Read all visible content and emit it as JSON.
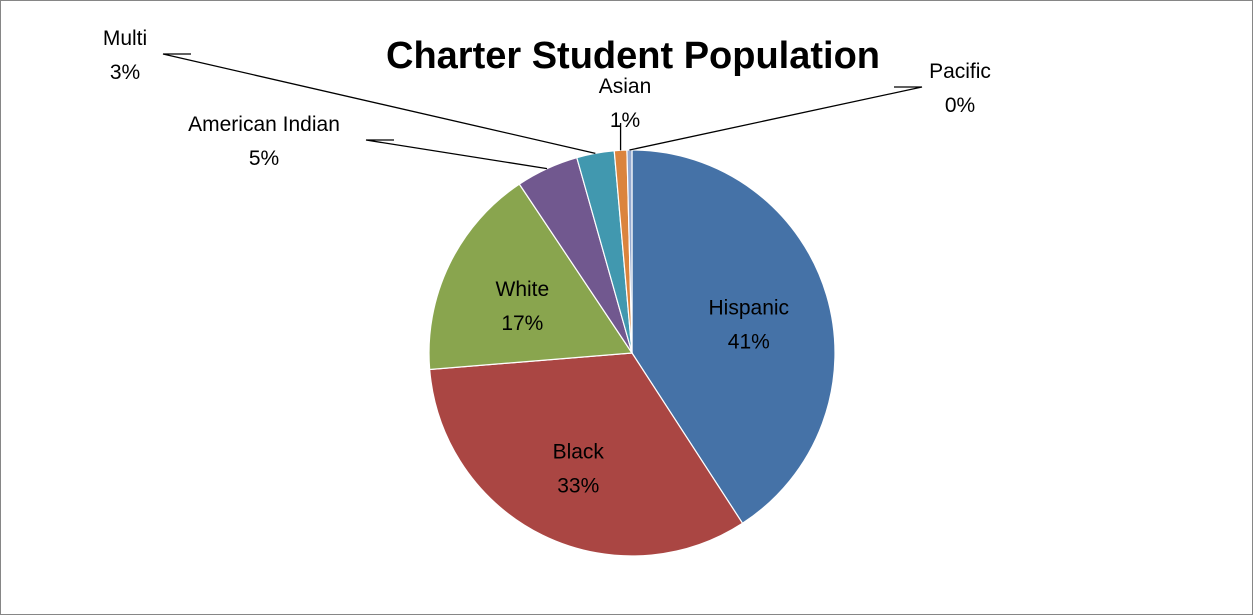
{
  "chart_data": {
    "type": "pie",
    "title": "Charter Student Population",
    "slices": [
      {
        "name": "Hispanic",
        "value": 41,
        "label": "41%",
        "color": "#4572A7"
      },
      {
        "name": "Black",
        "value": 33,
        "label": "33%",
        "color": "#AA4643"
      },
      {
        "name": "White",
        "value": 17,
        "label": "17%",
        "color": "#89A54E"
      },
      {
        "name": "American Indian",
        "value": 5,
        "label": "5%",
        "color": "#71588F"
      },
      {
        "name": "Multi",
        "value": 3,
        "label": "3%",
        "color": "#4198AF"
      },
      {
        "name": "Asian",
        "value": 1,
        "label": "1%",
        "color": "#DB843D"
      },
      {
        "name": "Pacific",
        "value": 0,
        "label": "0%",
        "color": "#93A9CF"
      }
    ],
    "legend": "none",
    "data_labels": "category-and-percent"
  }
}
